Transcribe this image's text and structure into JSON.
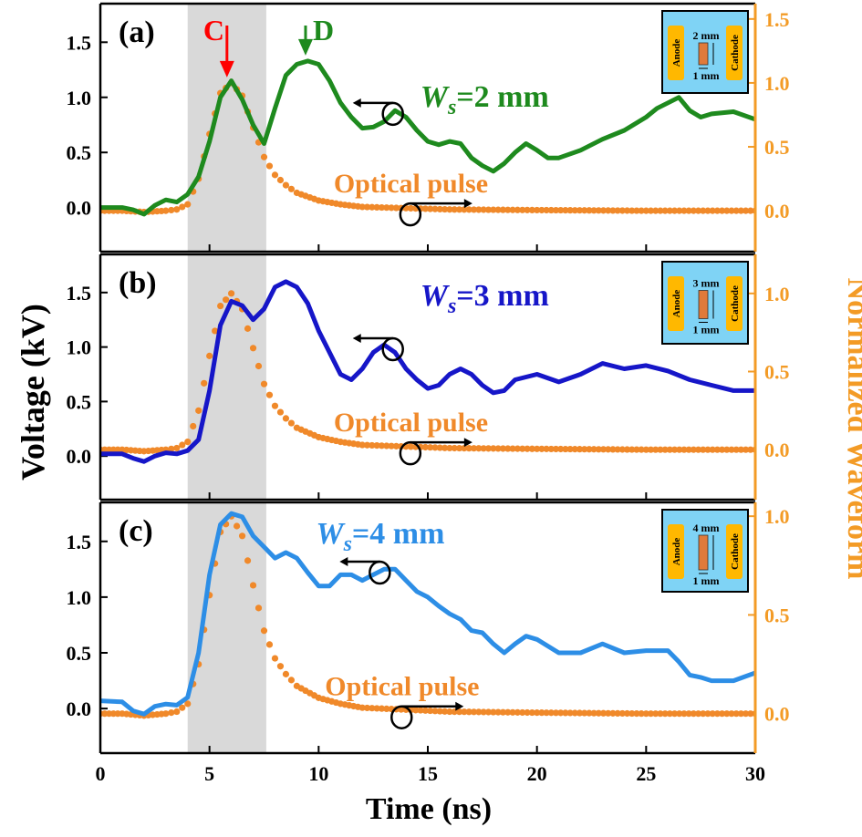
{
  "figure": {
    "xlabel": "Time (ns)",
    "ylabel_left": "Voltage (kV)",
    "ylabel_right": "Normalized Waveform"
  },
  "colors": {
    "axis_left": "#000000",
    "axis_right": "#f39b26",
    "optical": "#f0892a",
    "shade": "#d9d9d9",
    "inset_bg": "#7fd3f5",
    "electrode": "#ffb800",
    "gap_block": "#e07a3a",
    "marker_C": "#ff0000",
    "marker_D": "#1e8a1e"
  },
  "chart_data": [
    {
      "panel": "(a)",
      "type": "line",
      "xlim": [
        0,
        30
      ],
      "ylim_left": [
        -0.4,
        1.85
      ],
      "ylim_right": [
        -0.32,
        1.62
      ],
      "xticks": [
        0,
        5,
        10,
        15,
        20,
        25,
        30
      ],
      "yticks_left": [
        0.0,
        0.5,
        1.0,
        1.5
      ],
      "yticks_right": [
        0.0,
        0.5,
        1.0,
        1.5
      ],
      "xtick_labels": [
        "0",
        "5",
        "10",
        "15",
        "20",
        "25",
        "30"
      ],
      "ytick_labels_left": [
        "0.0",
        "0.5",
        "1.0",
        "1.5"
      ],
      "ytick_labels_right": [
        "0.0",
        "0.5",
        "1.0",
        "1.5"
      ],
      "shade": [
        4.0,
        7.6
      ],
      "series_label_prefix": "W",
      "series_label_sub": "s",
      "series_label_value": "=2 mm",
      "series_color": "#1e8a1e",
      "optical_label": "Optical pulse",
      "inset": {
        "anode": "Anode",
        "cathode": "Cathode",
        "gap_label": "2 mm",
        "width_label": "1 mm",
        "gap_mm": 2
      },
      "markers": [
        {
          "label": "C",
          "x": 5.8
        },
        {
          "label": "D",
          "x": 9.4
        }
      ],
      "voltage": {
        "x": [
          0,
          1,
          1.5,
          2,
          2.5,
          3,
          3.5,
          4,
          4.5,
          5,
          5.5,
          6,
          6.5,
          7,
          7.5,
          8,
          8.5,
          9,
          9.5,
          10,
          10.5,
          11,
          11.5,
          12,
          12.5,
          13,
          13.5,
          14,
          14.5,
          15,
          15.5,
          16,
          16.5,
          17,
          17.5,
          18,
          18.5,
          19,
          19.5,
          20,
          20.5,
          21,
          22,
          23,
          24,
          25,
          25.5,
          26,
          26.5,
          27,
          27.5,
          28,
          29,
          30
        ],
        "y": [
          0.0,
          0.0,
          -0.02,
          -0.06,
          0.02,
          0.07,
          0.05,
          0.12,
          0.28,
          0.6,
          1.0,
          1.15,
          0.98,
          0.75,
          0.58,
          0.9,
          1.2,
          1.3,
          1.33,
          1.3,
          1.15,
          0.95,
          0.82,
          0.72,
          0.73,
          0.78,
          0.88,
          0.82,
          0.7,
          0.6,
          0.57,
          0.6,
          0.58,
          0.45,
          0.38,
          0.33,
          0.4,
          0.5,
          0.58,
          0.52,
          0.45,
          0.45,
          0.52,
          0.62,
          0.7,
          0.82,
          0.9,
          0.95,
          1.0,
          0.88,
          0.82,
          0.85,
          0.87,
          0.8
        ]
      },
      "optical": {
        "x": [
          0,
          1,
          2,
          3,
          3.5,
          4,
          4.5,
          5,
          5.5,
          6,
          6.5,
          7,
          7.5,
          8,
          8.5,
          9,
          10,
          11,
          12,
          14,
          16,
          20,
          25,
          30
        ],
        "y": [
          0.0,
          0.0,
          -0.01,
          0.0,
          0.01,
          0.05,
          0.25,
          0.6,
          0.92,
          1.0,
          0.9,
          0.65,
          0.42,
          0.28,
          0.2,
          0.14,
          0.08,
          0.05,
          0.03,
          0.02,
          0.01,
          0.005,
          0.0,
          0.0
        ]
      },
      "left_arrow_label_anchor": {
        "x": 13.4,
        "y": 0.85
      },
      "right_arrow_anchor": {
        "x": 14.2,
        "y": -0.05
      }
    },
    {
      "panel": "(b)",
      "type": "line",
      "xlim": [
        0,
        30
      ],
      "ylim_left": [
        -0.4,
        1.85
      ],
      "ylim_right": [
        -0.32,
        1.25
      ],
      "xticks": [
        0,
        5,
        10,
        15,
        20,
        25,
        30
      ],
      "yticks_left": [
        0.0,
        0.5,
        1.0,
        1.5
      ],
      "yticks_right": [
        0.0,
        0.5,
        1.0
      ],
      "xtick_labels": [
        "0",
        "5",
        "10",
        "15",
        "20",
        "25",
        "30"
      ],
      "ytick_labels_left": [
        "0.0",
        "0.5",
        "1.0",
        "1.5"
      ],
      "ytick_labels_right": [
        "0.0",
        "0.5",
        "1.0"
      ],
      "shade": [
        4.0,
        7.6
      ],
      "series_label_prefix": "W",
      "series_label_sub": "s",
      "series_label_value": "=3 mm",
      "series_color": "#1616c8",
      "optical_label": "Optical pulse",
      "inset": {
        "anode": "Anode",
        "cathode": "Cathode",
        "gap_label": "3 mm",
        "width_label": "1 mm",
        "gap_mm": 3
      },
      "markers": [],
      "voltage": {
        "x": [
          0,
          1,
          1.5,
          2,
          2.5,
          3,
          3.5,
          4,
          4.5,
          5,
          5.5,
          6,
          6.5,
          7,
          7.5,
          8,
          8.5,
          9,
          9.5,
          10,
          10.5,
          11,
          11.5,
          12,
          12.5,
          13,
          13.5,
          14,
          14.5,
          15,
          15.5,
          16,
          16.5,
          17,
          17.5,
          18,
          18.5,
          19,
          20,
          21,
          22,
          23,
          24,
          25,
          26,
          27,
          28,
          29,
          30
        ],
        "y": [
          0.02,
          0.02,
          -0.02,
          -0.05,
          0.0,
          0.03,
          0.02,
          0.05,
          0.15,
          0.6,
          1.2,
          1.42,
          1.38,
          1.25,
          1.35,
          1.55,
          1.6,
          1.55,
          1.4,
          1.15,
          0.95,
          0.75,
          0.7,
          0.8,
          0.95,
          1.02,
          0.95,
          0.8,
          0.7,
          0.62,
          0.65,
          0.75,
          0.8,
          0.75,
          0.65,
          0.58,
          0.6,
          0.7,
          0.75,
          0.68,
          0.75,
          0.85,
          0.8,
          0.83,
          0.78,
          0.7,
          0.65,
          0.6,
          0.6
        ]
      },
      "optical": {
        "x": [
          0,
          1,
          2,
          3,
          3.5,
          4,
          4.5,
          5,
          5.5,
          6,
          6.5,
          7,
          7.5,
          8,
          8.5,
          9,
          10,
          11,
          12,
          14,
          16,
          20,
          25,
          30
        ],
        "y": [
          0.0,
          0.0,
          -0.01,
          0.0,
          0.01,
          0.05,
          0.25,
          0.6,
          0.92,
          1.0,
          0.9,
          0.65,
          0.42,
          0.28,
          0.2,
          0.14,
          0.08,
          0.05,
          0.03,
          0.02,
          0.01,
          0.005,
          0.0,
          0.0
        ]
      },
      "left_arrow_label_anchor": {
        "x": 13.4,
        "y": 0.98
      },
      "right_arrow_anchor": {
        "x": 14.2,
        "y": -0.02
      }
    },
    {
      "panel": "(c)",
      "type": "line",
      "xlim": [
        0,
        30
      ],
      "ylim_left": [
        -0.4,
        1.85
      ],
      "ylim_right": [
        -0.2,
        1.07
      ],
      "xticks": [
        0,
        5,
        10,
        15,
        20,
        25,
        30
      ],
      "yticks_left": [
        0.0,
        0.5,
        1.0,
        1.5
      ],
      "yticks_right": [
        0.0,
        0.5,
        1.0
      ],
      "xtick_labels": [
        "0",
        "5",
        "10",
        "15",
        "20",
        "25",
        "30"
      ],
      "ytick_labels_left": [
        "0.0",
        "0.5",
        "1.0",
        "1.5"
      ],
      "ytick_labels_right": [
        "0.0",
        "0.5",
        "1.0"
      ],
      "shade": [
        4.0,
        7.6
      ],
      "series_label_prefix": "W",
      "series_label_sub": "s",
      "series_label_value": "=4 mm",
      "series_color": "#2d8ee6",
      "optical_label": "Optical pulse",
      "inset": {
        "anode": "Anode",
        "cathode": "Cathode",
        "gap_label": "4 mm",
        "width_label": "1 mm",
        "gap_mm": 4
      },
      "markers": [],
      "voltage": {
        "x": [
          0,
          1,
          1.5,
          2,
          2.5,
          3,
          3.5,
          4,
          4.5,
          5,
          5.5,
          6,
          6.5,
          7,
          7.5,
          8,
          8.5,
          9,
          9.5,
          10,
          10.5,
          11,
          11.5,
          12,
          12.5,
          13,
          13.5,
          14,
          14.5,
          15,
          15.5,
          16,
          16.5,
          17,
          17.5,
          18,
          18.5,
          19,
          19.5,
          20,
          21,
          22,
          23,
          24,
          25,
          26,
          26.5,
          27,
          27.5,
          28,
          29,
          30
        ],
        "y": [
          0.07,
          0.06,
          -0.02,
          -0.05,
          0.02,
          0.04,
          0.03,
          0.1,
          0.5,
          1.2,
          1.65,
          1.75,
          1.72,
          1.55,
          1.45,
          1.35,
          1.4,
          1.35,
          1.22,
          1.1,
          1.1,
          1.2,
          1.2,
          1.15,
          1.2,
          1.25,
          1.25,
          1.15,
          1.05,
          1.0,
          0.92,
          0.85,
          0.8,
          0.7,
          0.68,
          0.58,
          0.5,
          0.58,
          0.65,
          0.62,
          0.5,
          0.5,
          0.58,
          0.5,
          0.52,
          0.52,
          0.42,
          0.3,
          0.28,
          0.25,
          0.25,
          0.32
        ]
      },
      "optical": {
        "x": [
          0,
          1,
          2,
          3,
          3.5,
          4,
          4.5,
          5,
          5.5,
          6,
          6.5,
          7,
          7.5,
          8,
          8.5,
          9,
          10,
          11,
          12,
          14,
          16,
          20,
          25,
          30
        ],
        "y": [
          0.0,
          0.0,
          -0.01,
          0.0,
          0.01,
          0.05,
          0.25,
          0.6,
          0.92,
          1.0,
          0.9,
          0.65,
          0.42,
          0.28,
          0.2,
          0.14,
          0.08,
          0.05,
          0.03,
          0.02,
          0.01,
          0.005,
          0.0,
          0.0
        ]
      },
      "left_arrow_label_anchor": {
        "x": 12.8,
        "y": 1.22
      },
      "right_arrow_anchor": {
        "x": 13.8,
        "y": 0.02
      }
    }
  ]
}
